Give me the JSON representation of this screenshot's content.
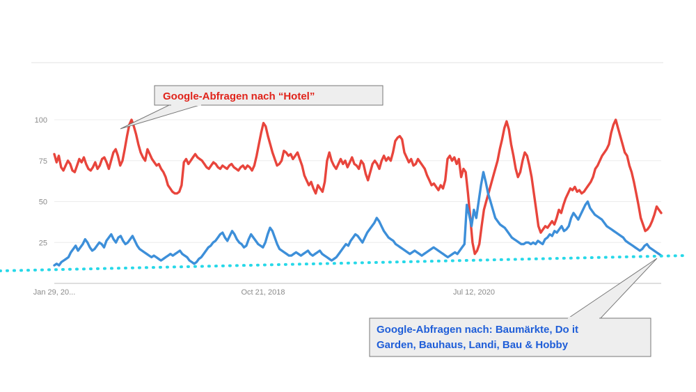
{
  "chart_data": {
    "type": "line",
    "x_labels": [
      "Jan 29, 20...",
      "Oct 21, 2018",
      "Jul 12, 2020"
    ],
    "y_ticks": [
      25,
      50,
      75,
      100
    ],
    "ylim": [
      0,
      100
    ],
    "grid": true,
    "series": [
      {
        "color": "#e8453c",
        "values": [
          79,
          74,
          78,
          71,
          69,
          72,
          75,
          73,
          69,
          68,
          72,
          76,
          74,
          77,
          73,
          70,
          69,
          71,
          74,
          70,
          72,
          76,
          77,
          74,
          70,
          75,
          80,
          82,
          78,
          72,
          75,
          82,
          90,
          97,
          100,
          96,
          91,
          85,
          80,
          77,
          75,
          82,
          79,
          76,
          74,
          72,
          73,
          70,
          68,
          65,
          60,
          58,
          56,
          55,
          55,
          56,
          60,
          74,
          76,
          73,
          75,
          77,
          79,
          77,
          76,
          75,
          73,
          71,
          70,
          72,
          74,
          73,
          71,
          70,
          72,
          71,
          70,
          72,
          73,
          71,
          70,
          69,
          71,
          72,
          70,
          72,
          71,
          69,
          72,
          78,
          85,
          92,
          98,
          96,
          90,
          85,
          80,
          76,
          72,
          73,
          75,
          81,
          80,
          78,
          79,
          76,
          78,
          80,
          76,
          72,
          66,
          63,
          60,
          62,
          58,
          55,
          60,
          58,
          56,
          62,
          75,
          80,
          75,
          72,
          70,
          73,
          76,
          73,
          75,
          71,
          74,
          77,
          73,
          72,
          70,
          75,
          73,
          67,
          63,
          68,
          73,
          75,
          73,
          70,
          75,
          78,
          75,
          77,
          75,
          80,
          87,
          89,
          90,
          88,
          80,
          77,
          74,
          76,
          72,
          73,
          76,
          74,
          72,
          70,
          66,
          63,
          60,
          61,
          59,
          57,
          60,
          58,
          63,
          76,
          78,
          75,
          77,
          73,
          76,
          65,
          70,
          68,
          55,
          40,
          25,
          18,
          20,
          24,
          35,
          45,
          50,
          55,
          60,
          65,
          70,
          75,
          82,
          88,
          95,
          99,
          94,
          85,
          78,
          70,
          65,
          68,
          75,
          80,
          78,
          72,
          65,
          55,
          45,
          35,
          31,
          33,
          35,
          34,
          36,
          38,
          36,
          40,
          45,
          43,
          48,
          52,
          55,
          58,
          57,
          59,
          56,
          57,
          55,
          56,
          58,
          60,
          62,
          65,
          70,
          72,
          75,
          78,
          80,
          82,
          85,
          92,
          97,
          100,
          95,
          90,
          85,
          80,
          78,
          72,
          68,
          62,
          55,
          48,
          40,
          36,
          32,
          33,
          35,
          38,
          42,
          47,
          45,
          43
        ]
      },
      {
        "color": "#3d8fd9",
        "values": [
          11,
          12,
          11,
          13,
          14,
          15,
          16,
          19,
          21,
          23,
          20,
          22,
          24,
          27,
          25,
          22,
          20,
          21,
          23,
          25,
          24,
          22,
          26,
          28,
          30,
          27,
          25,
          28,
          29,
          26,
          24,
          25,
          27,
          29,
          26,
          23,
          21,
          20,
          19,
          18,
          17,
          16,
          17,
          16,
          15,
          14,
          15,
          16,
          17,
          18,
          17,
          18,
          19,
          20,
          18,
          17,
          16,
          14,
          13,
          12,
          13,
          15,
          16,
          18,
          20,
          22,
          23,
          25,
          26,
          28,
          30,
          31,
          28,
          26,
          29,
          32,
          30,
          27,
          25,
          24,
          22,
          23,
          27,
          30,
          28,
          26,
          24,
          23,
          22,
          25,
          30,
          34,
          32,
          28,
          24,
          21,
          20,
          19,
          18,
          17,
          17,
          18,
          19,
          18,
          17,
          18,
          19,
          20,
          18,
          17,
          18,
          19,
          20,
          18,
          17,
          16,
          15,
          14,
          15,
          16,
          18,
          20,
          22,
          24,
          23,
          26,
          28,
          30,
          29,
          27,
          25,
          28,
          31,
          33,
          35,
          37,
          40,
          38,
          35,
          32,
          30,
          28,
          27,
          26,
          24,
          23,
          22,
          21,
          20,
          19,
          18,
          19,
          20,
          19,
          18,
          17,
          18,
          19,
          20,
          21,
          22,
          21,
          20,
          19,
          18,
          17,
          16,
          17,
          18,
          19,
          18,
          20,
          22,
          24,
          48,
          42,
          35,
          45,
          40,
          50,
          60,
          68,
          62,
          55,
          50,
          45,
          40,
          38,
          36,
          35,
          34,
          32,
          30,
          28,
          27,
          26,
          25,
          24,
          24,
          25,
          25,
          24,
          25,
          24,
          26,
          25,
          24,
          27,
          28,
          30,
          29,
          32,
          31,
          33,
          35,
          32,
          33,
          35,
          40,
          43,
          41,
          39,
          42,
          45,
          48,
          50,
          46,
          44,
          42,
          41,
          40,
          39,
          37,
          35,
          34,
          33,
          32,
          31,
          30,
          29,
          28,
          26,
          25,
          24,
          23,
          22,
          21,
          20,
          21,
          23,
          24,
          22,
          21,
          20,
          19,
          18,
          17
        ]
      }
    ],
    "callouts": {
      "hotel": "Google-Abfragen nach “Hotel”",
      "hardware_line1": "Google-Abfragen nach: Baumärkte, Do it",
      "hardware_line2": "Garden, Bauhaus, Landi, Bau & Hobby"
    }
  }
}
